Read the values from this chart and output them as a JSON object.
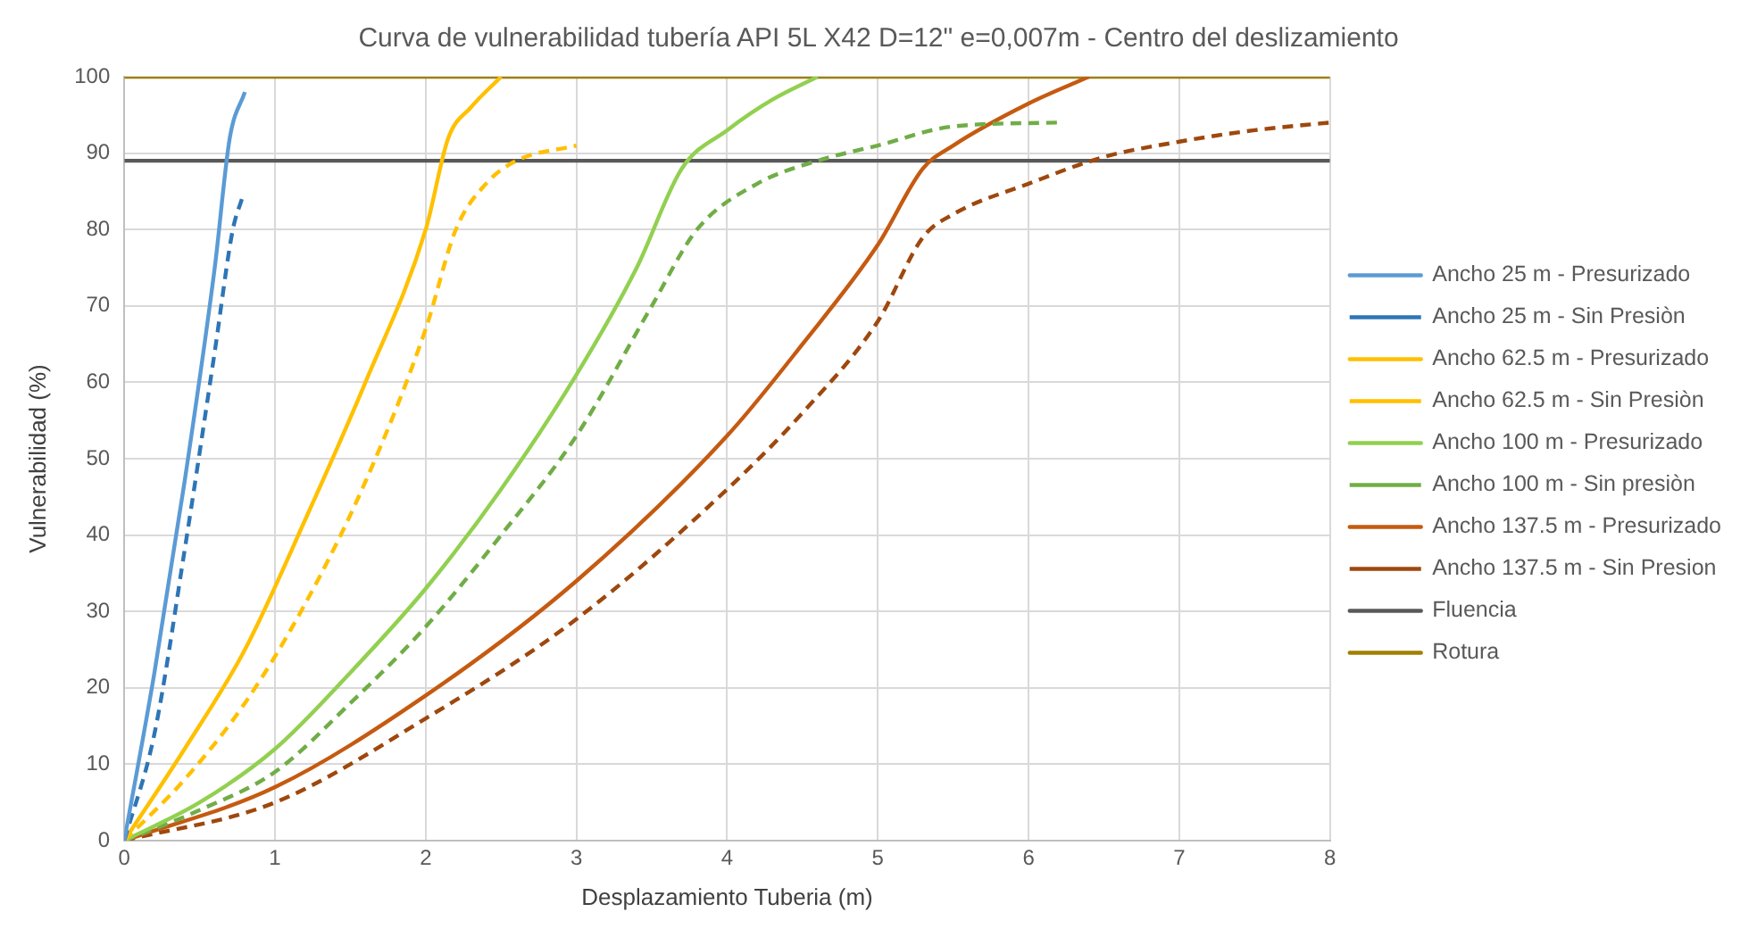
{
  "chart_data": {
    "type": "line",
    "title": "Curva de vulnerabilidad tubería API 5L X42 D=12\" e=0,007m - Centro del deslizamiento",
    "xlabel": "Desplazamiento Tuberia (m)",
    "ylabel": "Vulnerabilidad (%)",
    "xlim": [
      0,
      8
    ],
    "xticks": [
      0,
      1,
      2,
      3,
      4,
      5,
      6,
      7,
      8
    ],
    "ylim": [
      0,
      100
    ],
    "yticks": [
      0,
      10,
      20,
      30,
      40,
      50,
      60,
      70,
      80,
      90,
      100
    ],
    "grid": true,
    "legend": "right",
    "marker": "none",
    "series": [
      {
        "name": "Ancho 25 m - Presurizado",
        "color": "#5b9bd5",
        "line_style": "solid",
        "x": [
          0,
          0.2,
          0.4,
          0.6,
          0.7,
          0.8
        ],
        "values": [
          0,
          22,
          47,
          75,
          92,
          98
        ]
      },
      {
        "name": "Ancho 25 m - Sin Presiòn",
        "color": "#2e75b6",
        "line_style": "dashed",
        "x": [
          0,
          0.2,
          0.4,
          0.6,
          0.72,
          0.78
        ],
        "values": [
          0,
          14,
          38,
          64,
          80,
          84
        ]
      },
      {
        "name": "Ancho 62.5 m - Presurizado",
        "color": "#ffc000",
        "line_style": "solid",
        "x": [
          0,
          0.4,
          0.8,
          1.2,
          1.6,
          2.0,
          2.15,
          2.3,
          2.5
        ],
        "values": [
          0,
          12,
          25,
          42,
          60,
          80,
          92,
          96,
          100
        ]
      },
      {
        "name": "Ancho 62.5 m - Sin Presiòn",
        "color": "#ffc000",
        "line_style": "dashed",
        "x": [
          0,
          0.4,
          0.8,
          1.2,
          1.6,
          2.0,
          2.2,
          2.4,
          2.6,
          3.0
        ],
        "values": [
          0,
          8,
          18,
          31,
          47,
          67,
          80,
          86,
          89,
          91
        ]
      },
      {
        "name": "Ancho 100 m - Presurizado",
        "color": "#92d050",
        "line_style": "solid",
        "x": [
          0,
          0.5,
          1,
          1.5,
          2,
          2.5,
          3,
          3.4,
          3.7,
          4,
          4.3,
          4.6
        ],
        "values": [
          0,
          5,
          12,
          22,
          33,
          46,
          61,
          75,
          88,
          93,
          97,
          100
        ]
      },
      {
        "name": "Ancho 100 m - Sin presiòn",
        "color": "#70ad47",
        "line_style": "dashed",
        "x": [
          0,
          0.5,
          1,
          1.5,
          2,
          2.5,
          3,
          3.5,
          3.8,
          4.2,
          4.6,
          5,
          5.5,
          6.2
        ],
        "values": [
          0,
          4,
          9,
          18,
          28,
          40,
          53,
          70,
          80,
          86,
          89,
          91,
          93.5,
          94
        ]
      },
      {
        "name": "Ancho 137.5 m - Presurizado",
        "color": "#c55a11",
        "line_style": "solid",
        "x": [
          0,
          1,
          2,
          3,
          4,
          4.5,
          5,
          5.3,
          5.5,
          6,
          6.4
        ],
        "values": [
          0,
          7,
          19,
          34,
          53,
          65,
          78,
          88,
          91,
          96.5,
          100
        ]
      },
      {
        "name": "Ancho 137.5 m - Sin Presion",
        "color": "#9e480e",
        "line_style": "dashed",
        "x": [
          0,
          1,
          2,
          3,
          4,
          4.5,
          5,
          5.3,
          5.5,
          6,
          6.5,
          7,
          7.5,
          8
        ],
        "values": [
          0,
          5,
          16,
          29,
          46,
          56,
          68,
          79,
          82,
          86,
          89.5,
          91.5,
          93,
          94
        ]
      },
      {
        "name": "Fluencia",
        "color": "#595959",
        "line_style": "solid",
        "x": [
          0,
          8
        ],
        "values": [
          89,
          89
        ]
      },
      {
        "name": "Rotura",
        "color": "#a08000",
        "line_style": "solid",
        "x": [
          0,
          8
        ],
        "values": [
          100,
          100
        ]
      }
    ]
  }
}
